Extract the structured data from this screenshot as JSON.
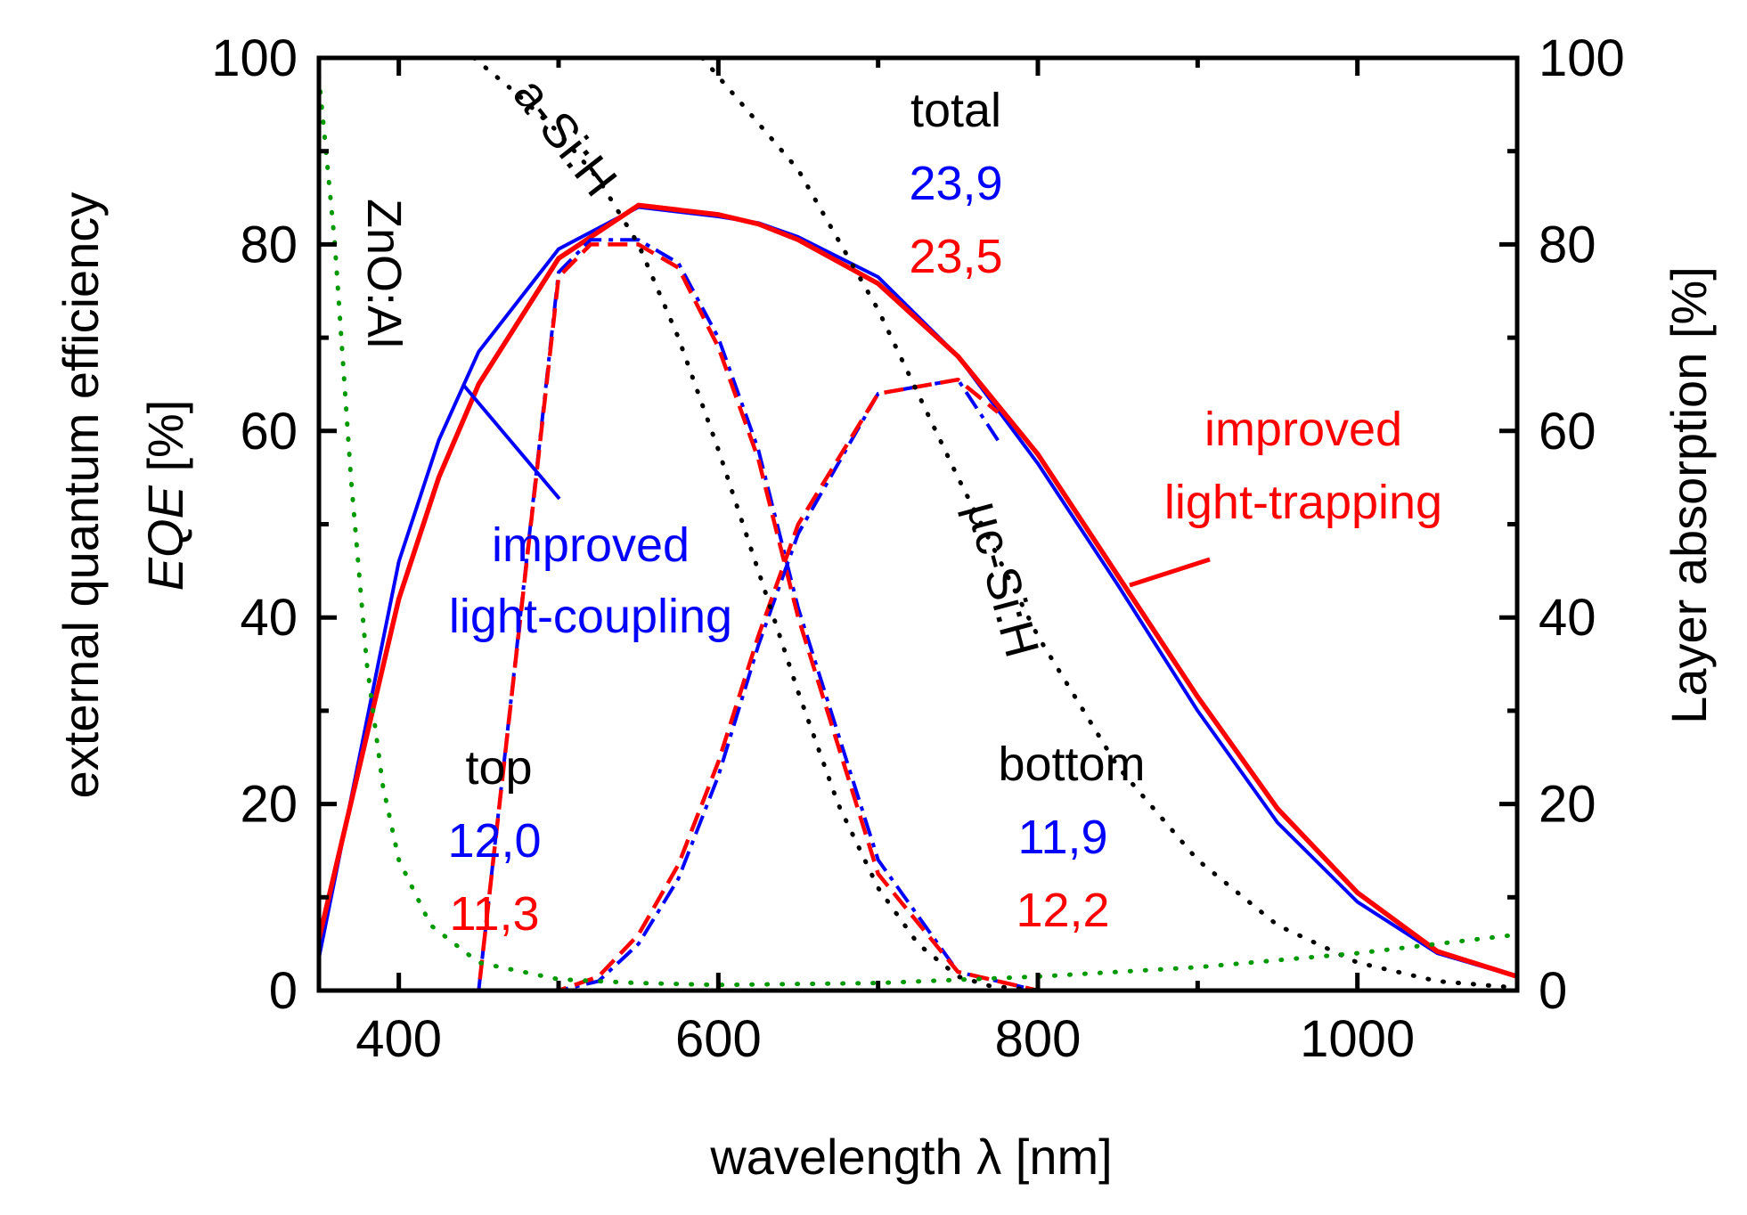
{
  "chart_data": {
    "type": "line",
    "xlabel": "wavelength λ [nm]",
    "ylabel_line1": "external quantum efficiency",
    "ylabel_line2_italic": "EQE",
    "ylabel_line2_rest": " [%]",
    "y2label": "Layer absorption [%]",
    "xlim": [
      350,
      1100
    ],
    "ylim": [
      0,
      100
    ],
    "y2lim": [
      0,
      100
    ],
    "x_ticks": [
      400,
      600,
      800,
      1000
    ],
    "x_tick_labels": [
      "400",
      "600",
      "800",
      "1000"
    ],
    "y_ticks": [
      0,
      20,
      40,
      60,
      80,
      100
    ],
    "y_tick_labels": [
      "0",
      "20",
      "40",
      "60",
      "80",
      "100"
    ],
    "y2_ticks": [
      0,
      20,
      40,
      60,
      80,
      100
    ],
    "y2_tick_labels": [
      "0",
      "20",
      "40",
      "60",
      "80",
      "100"
    ],
    "colors": {
      "blue": "#0000ff",
      "red": "#ff0000",
      "green": "#009900",
      "black": "#000000"
    },
    "series": [
      {
        "name": "total EQE, improved light-coupling",
        "color": "#0000ff",
        "style": "solid",
        "width": 4,
        "x": [
          350,
          400,
          425,
          450,
          500,
          550,
          600,
          625,
          650,
          700,
          750,
          800,
          850,
          900,
          950,
          1000,
          1050,
          1100
        ],
        "y": [
          3.5,
          46,
          59,
          68.5,
          79.5,
          84,
          83,
          82.3,
          80.8,
          76.5,
          68,
          56.5,
          43.5,
          30,
          18,
          9.5,
          4,
          1.5
        ]
      },
      {
        "name": "total EQE, improved light-trapping",
        "color": "#ff0000",
        "style": "solid",
        "width": 5.5,
        "x": [
          350,
          400,
          425,
          450,
          500,
          550,
          600,
          625,
          650,
          700,
          750,
          800,
          850,
          900,
          950,
          1000,
          1050,
          1100
        ],
        "y": [
          5.5,
          42,
          55,
          65,
          78.5,
          84.2,
          83.2,
          82.2,
          80.5,
          75.8,
          68,
          57.5,
          44.5,
          31.5,
          19.5,
          10.5,
          4.2,
          1.5
        ]
      },
      {
        "name": "top cell EQE, improved light-coupling",
        "color": "#0000ff",
        "style": "dashdot",
        "width": 4,
        "x": [
          350,
          450,
          500,
          520,
          550,
          575,
          600,
          625,
          650,
          700,
          750,
          800
        ],
        "y": [
          0,
          0,
          77,
          80.5,
          80.5,
          78,
          70,
          58,
          41,
          14,
          2,
          0
        ]
      },
      {
        "name": "top cell EQE, improved light-trapping",
        "color": "#ff0000",
        "style": "dashed",
        "width": 4.5,
        "x": [
          350,
          450,
          500,
          520,
          550,
          575,
          600,
          625,
          650,
          700,
          750,
          800
        ],
        "y": [
          0,
          0,
          76.5,
          80,
          80,
          77.5,
          69,
          57,
          40,
          12.5,
          2,
          0
        ]
      },
      {
        "name": "bottom cell EQE, improved light-coupling",
        "color": "#0000ff",
        "style": "dashdot",
        "width": 4,
        "x": [
          350,
          500,
          525,
          550,
          575,
          600,
          625,
          650,
          700,
          750,
          775
        ],
        "y": [
          0,
          0,
          1,
          5,
          12,
          23,
          37,
          49,
          64,
          65.5,
          59
        ]
      },
      {
        "name": "bottom cell EQE, improved light-trapping",
        "color": "#ff0000",
        "style": "dashed",
        "width": 4.5,
        "x": [
          350,
          500,
          525,
          550,
          575,
          600,
          625,
          650,
          700,
          750,
          775
        ],
        "y": [
          0,
          0,
          1.5,
          6,
          13.5,
          24.5,
          38,
          50,
          64,
          65.5,
          62
        ]
      },
      {
        "name": "a-Si:H layer absorption",
        "color": "#000000",
        "style": "dotted",
        "width": 5,
        "axis": "right",
        "x": [
          447,
          475,
          500,
          525,
          550,
          575,
          600,
          625,
          650,
          675,
          700,
          725,
          750,
          770,
          800
        ],
        "y": [
          100,
          96,
          92,
          87,
          80,
          70,
          58,
          45,
          32,
          20,
          11,
          5,
          1.5,
          0.5,
          0
        ]
      },
      {
        "name": "µc-Si:H layer absorption",
        "color": "#000000",
        "style": "dotted",
        "width": 5,
        "axis": "right",
        "x": [
          590,
          650,
          700,
          750,
          800,
          850,
          900,
          950,
          1000,
          1050,
          1100
        ],
        "y": [
          100,
          88,
          73,
          55,
          38,
          24,
          14,
          7,
          3,
          1,
          0.3
        ]
      },
      {
        "name": "ZnO:Al layer absorption",
        "color": "#009900",
        "style": "dotted",
        "width": 5,
        "axis": "right",
        "x": [
          350,
          360,
          370,
          380,
          390,
          400,
          420,
          450,
          500,
          550,
          600,
          700,
          800,
          900,
          1000,
          1100
        ],
        "y": [
          98,
          80,
          55,
          35,
          22,
          14,
          7,
          3,
          1.2,
          0.8,
          0.6,
          0.8,
          1.5,
          2.5,
          4,
          6
        ]
      }
    ],
    "annotations": [
      {
        "id": "total-title",
        "text": "total",
        "color": "#000000"
      },
      {
        "id": "total-blue",
        "text": "23,9",
        "color": "#0000ff"
      },
      {
        "id": "total-red",
        "text": "23,5",
        "color": "#ff0000"
      },
      {
        "id": "top-title",
        "text": "top",
        "color": "#000000"
      },
      {
        "id": "top-blue",
        "text": "12,0",
        "color": "#0000ff"
      },
      {
        "id": "top-red",
        "text": "11,3",
        "color": "#ff0000"
      },
      {
        "id": "bottom-title",
        "text": "bottom",
        "color": "#000000"
      },
      {
        "id": "bottom-blue",
        "text": "11,9",
        "color": "#0000ff"
      },
      {
        "id": "bottom-red",
        "text": "12,2",
        "color": "#ff0000"
      },
      {
        "id": "coupling-1",
        "text": "improved",
        "color": "#0000ff"
      },
      {
        "id": "coupling-2",
        "text": "light-coupling",
        "color": "#0000ff"
      },
      {
        "id": "trapping-1",
        "text": "improved",
        "color": "#ff0000"
      },
      {
        "id": "trapping-2",
        "text": "light-trapping",
        "color": "#ff0000"
      },
      {
        "id": "asi-label",
        "text": "a-Si:H",
        "color": "#000000"
      },
      {
        "id": "ucsi-label",
        "text": "µc-Si:H",
        "color": "#000000"
      },
      {
        "id": "zno-label",
        "text": "ZnO:Al",
        "color": "#000000"
      }
    ]
  }
}
